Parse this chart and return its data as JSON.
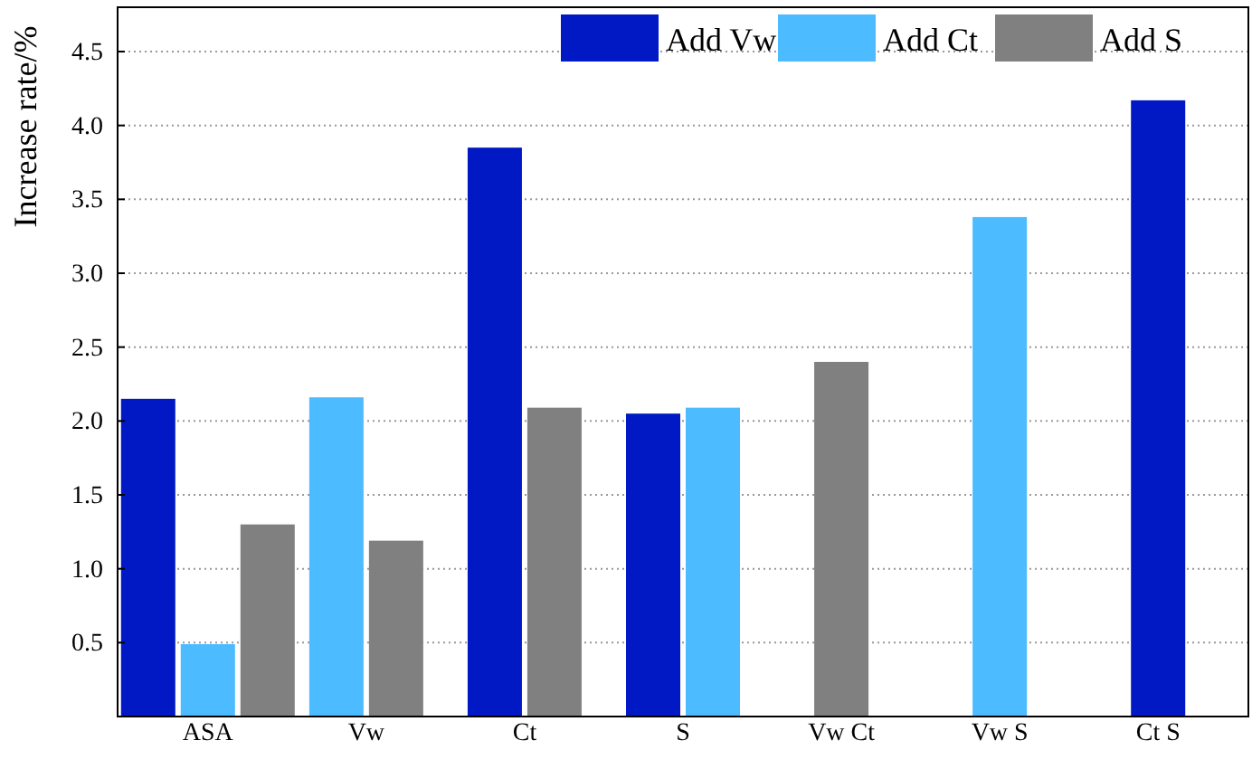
{
  "chart_data": {
    "type": "bar",
    "ylabel": "Increase rate/%",
    "categories": [
      "ASA",
      "Vw",
      "Ct",
      "S",
      "Vw Ct",
      "Vw S",
      "Ct S"
    ],
    "series": [
      {
        "name": "Add Vw",
        "color": "#0019c4",
        "values": [
          2.15,
          null,
          3.85,
          2.05,
          null,
          null,
          4.17
        ]
      },
      {
        "name": "Add Ct",
        "color": "#4dbbff",
        "values": [
          0.49,
          2.16,
          null,
          2.09,
          null,
          3.38,
          null
        ]
      },
      {
        "name": "Add S",
        "color": "#808080",
        "values": [
          1.3,
          1.19,
          2.09,
          null,
          2.4,
          null,
          null
        ]
      }
    ],
    "ylim": [
      0,
      4.8
    ],
    "yticks": [
      0.5,
      {
        "value": 1,
        "label": "1.0"
      },
      1.5,
      {
        "value": 2,
        "label": "2.0"
      },
      2.5,
      {
        "value": 3,
        "label": "3.0"
      },
      3.5,
      {
        "value": 4,
        "label": "4.0"
      },
      4.5
    ],
    "grid": "y",
    "legend": "top right"
  }
}
